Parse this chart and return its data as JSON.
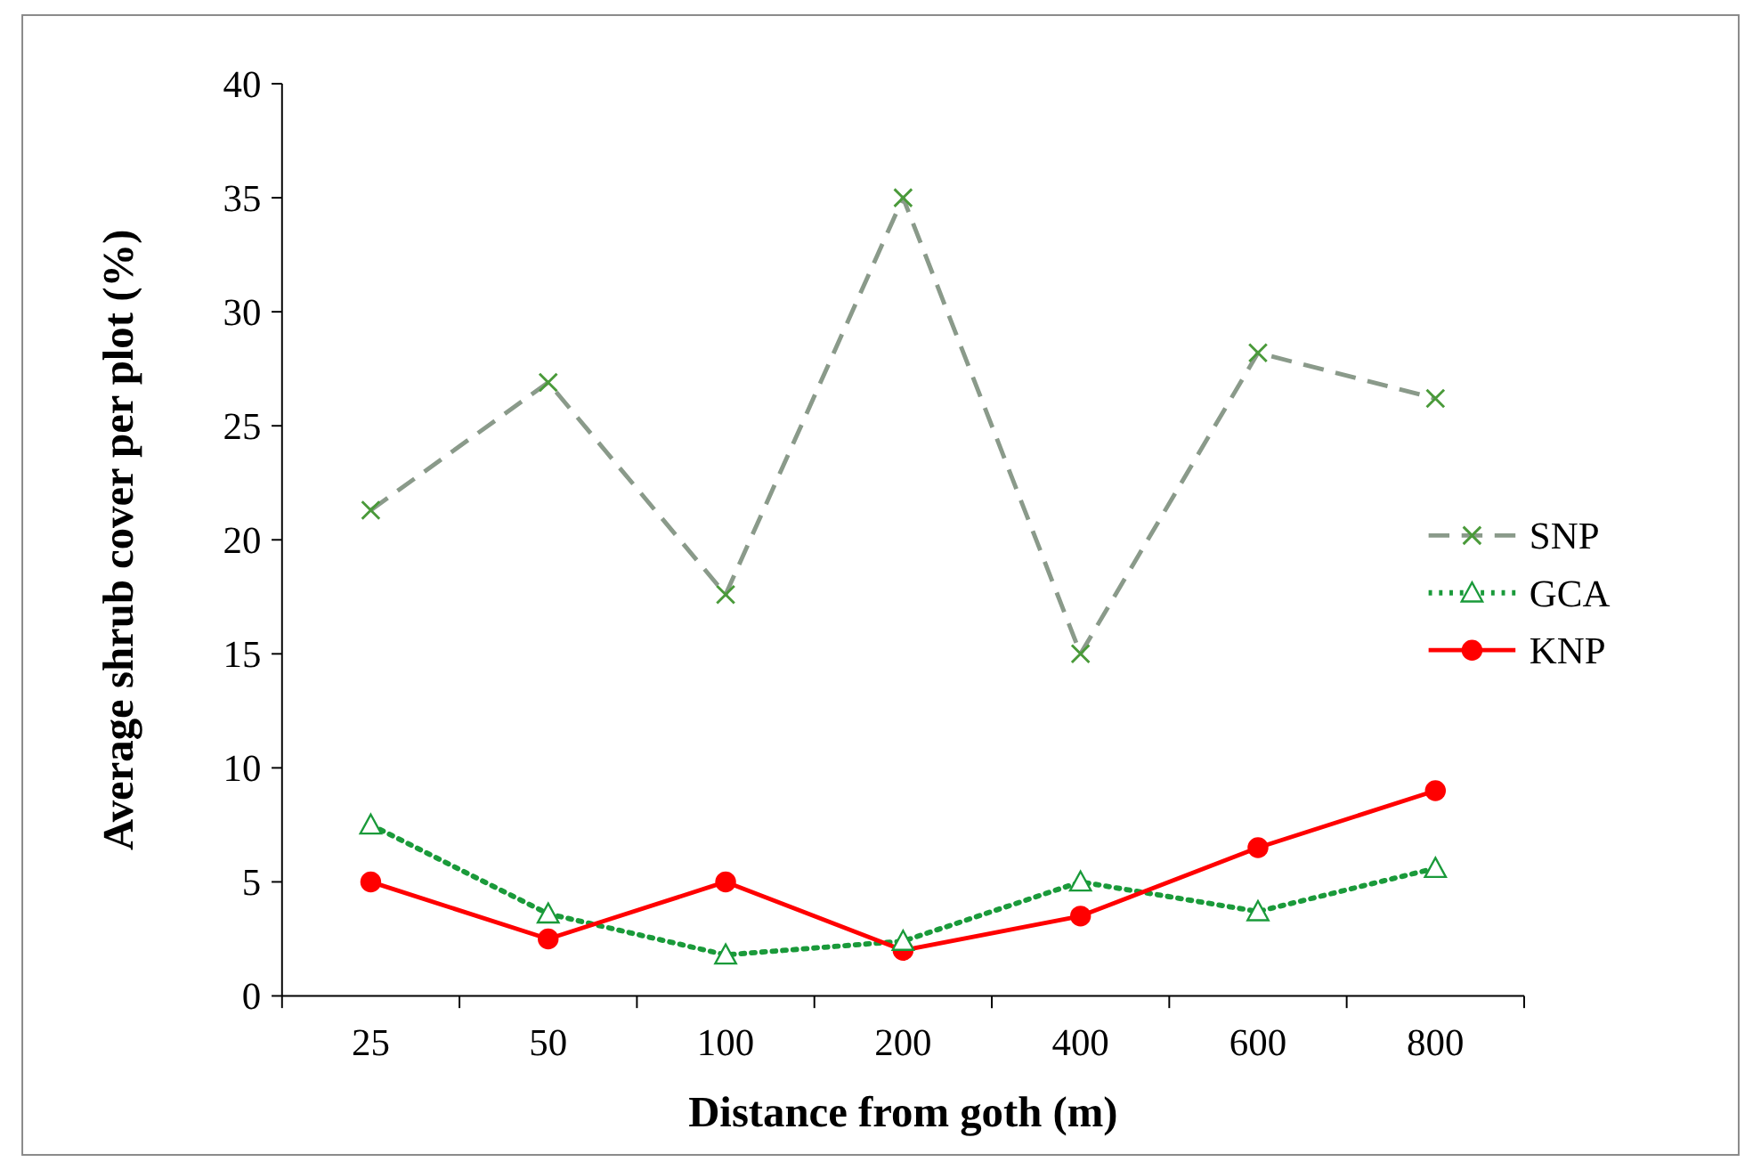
{
  "chart_data": {
    "type": "line",
    "xlabel": "Distance from goth (m)",
    "ylabel": "Average shrub cover per plot (%)",
    "categories": [
      "25",
      "50",
      "100",
      "200",
      "400",
      "600",
      "800"
    ],
    "ylim": [
      0,
      40
    ],
    "yticks": [
      0,
      5,
      10,
      15,
      20,
      25,
      30,
      35,
      40
    ],
    "grid": false,
    "legend": "right",
    "series": [
      {
        "name": "SNP",
        "color": "#8a9a8a",
        "marker": "cross",
        "line_style": "dashed",
        "values": [
          21.3,
          26.9,
          17.6,
          35.0,
          15.0,
          28.2,
          26.2
        ]
      },
      {
        "name": "GCA",
        "color": "#1a9a3a",
        "marker": "triangle",
        "line_style": "dotted",
        "values": [
          7.5,
          3.6,
          1.8,
          2.4,
          5.0,
          3.7,
          5.6
        ]
      },
      {
        "name": "KNP",
        "color": "#ff0000",
        "marker": "circle",
        "line_style": "solid",
        "values": [
          5.0,
          2.5,
          5.0,
          2.0,
          3.5,
          6.5,
          9.0
        ]
      }
    ]
  }
}
